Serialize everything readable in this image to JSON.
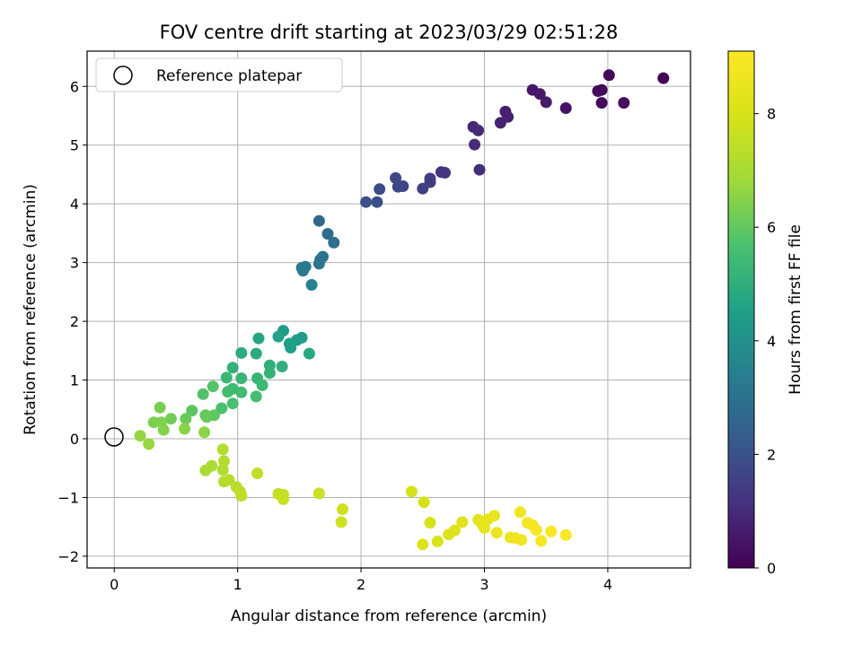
{
  "chart_data": {
    "type": "scatter",
    "title": "FOV centre drift starting at 2023/03/29 02:51:28",
    "xlabel": "Angular distance from reference (arcmin)",
    "ylabel": "Rotation from reference (arcmin)",
    "xlim": [
      -0.22,
      4.67
    ],
    "ylim": [
      -2.2,
      6.6
    ],
    "x_ticks": [
      0,
      1,
      2,
      3,
      4
    ],
    "y_ticks": [
      -2,
      -1,
      0,
      1,
      2,
      3,
      4,
      5,
      6
    ],
    "grid": true,
    "colormap": "viridis",
    "colorbar": {
      "label": "Hours from first FF file",
      "range": [
        0,
        9.1
      ],
      "ticks": [
        0,
        2,
        4,
        6,
        8
      ]
    },
    "reference": {
      "label": "Reference platepar",
      "x": 0,
      "y": 0
    },
    "legend": {
      "position": "top-left",
      "entries": [
        "Reference platepar"
      ]
    },
    "series": [
      {
        "points": [
          {
            "x": 4.45,
            "y": 6.14,
            "c": 0.05
          },
          {
            "x": 4.01,
            "y": 6.19,
            "c": 0.1
          },
          {
            "x": 3.95,
            "y": 5.94,
            "c": 0.15
          },
          {
            "x": 3.92,
            "y": 5.92,
            "c": 0.2
          },
          {
            "x": 3.95,
            "y": 5.72,
            "c": 0.25
          },
          {
            "x": 4.13,
            "y": 5.72,
            "c": 0.3
          },
          {
            "x": 3.66,
            "y": 5.63,
            "c": 0.4
          },
          {
            "x": 3.39,
            "y": 5.94,
            "c": 0.5
          },
          {
            "x": 3.45,
            "y": 5.87,
            "c": 0.55
          },
          {
            "x": 3.5,
            "y": 5.73,
            "c": 0.6
          },
          {
            "x": 3.17,
            "y": 5.57,
            "c": 0.7
          },
          {
            "x": 3.19,
            "y": 5.48,
            "c": 0.75
          },
          {
            "x": 3.13,
            "y": 5.38,
            "c": 0.8
          },
          {
            "x": 2.91,
            "y": 5.31,
            "c": 0.9
          },
          {
            "x": 2.95,
            "y": 5.25,
            "c": 0.95
          },
          {
            "x": 2.92,
            "y": 5.01,
            "c": 1.0
          },
          {
            "x": 2.96,
            "y": 4.58,
            "c": 1.05
          },
          {
            "x": 2.65,
            "y": 4.54,
            "c": 1.2
          },
          {
            "x": 2.68,
            "y": 4.53,
            "c": 1.25
          },
          {
            "x": 2.56,
            "y": 4.43,
            "c": 1.35
          },
          {
            "x": 2.56,
            "y": 4.37,
            "c": 1.4
          },
          {
            "x": 2.5,
            "y": 4.26,
            "c": 1.5
          },
          {
            "x": 2.34,
            "y": 4.3,
            "c": 1.6
          },
          {
            "x": 2.3,
            "y": 4.29,
            "c": 1.7
          },
          {
            "x": 2.28,
            "y": 4.44,
            "c": 1.75
          },
          {
            "x": 2.15,
            "y": 4.25,
            "c": 1.85
          },
          {
            "x": 2.13,
            "y": 4.03,
            "c": 1.9
          },
          {
            "x": 2.04,
            "y": 4.03,
            "c": 2.0
          },
          {
            "x": 1.66,
            "y": 3.71,
            "c": 2.6
          },
          {
            "x": 1.73,
            "y": 3.49,
            "c": 2.8
          },
          {
            "x": 1.78,
            "y": 3.34,
            "c": 2.9
          },
          {
            "x": 1.69,
            "y": 3.1,
            "c": 3.0
          },
          {
            "x": 1.67,
            "y": 3.05,
            "c": 3.05
          },
          {
            "x": 1.66,
            "y": 2.98,
            "c": 3.1
          },
          {
            "x": 1.52,
            "y": 2.91,
            "c": 3.2
          },
          {
            "x": 1.55,
            "y": 2.93,
            "c": 3.25
          },
          {
            "x": 1.53,
            "y": 2.86,
            "c": 3.3
          },
          {
            "x": 1.6,
            "y": 2.62,
            "c": 3.5
          },
          {
            "x": 1.37,
            "y": 1.84,
            "c": 4.3
          },
          {
            "x": 1.52,
            "y": 1.72,
            "c": 4.4
          },
          {
            "x": 1.48,
            "y": 1.68,
            "c": 4.45
          },
          {
            "x": 1.42,
            "y": 1.62,
            "c": 4.5
          },
          {
            "x": 1.43,
            "y": 1.55,
            "c": 4.55
          },
          {
            "x": 1.33,
            "y": 1.74,
            "c": 4.6
          },
          {
            "x": 1.17,
            "y": 1.71,
            "c": 4.7
          },
          {
            "x": 1.58,
            "y": 1.45,
            "c": 4.8
          },
          {
            "x": 1.15,
            "y": 1.45,
            "c": 4.85
          },
          {
            "x": 1.03,
            "y": 1.46,
            "c": 4.9
          },
          {
            "x": 1.26,
            "y": 1.25,
            "c": 5.0
          },
          {
            "x": 1.36,
            "y": 1.23,
            "c": 5.05
          },
          {
            "x": 0.96,
            "y": 1.21,
            "c": 5.1
          },
          {
            "x": 1.26,
            "y": 1.12,
            "c": 5.15
          },
          {
            "x": 1.16,
            "y": 1.03,
            "c": 5.2
          },
          {
            "x": 1.03,
            "y": 1.03,
            "c": 5.25
          },
          {
            "x": 0.91,
            "y": 1.04,
            "c": 5.3
          },
          {
            "x": 1.2,
            "y": 0.91,
            "c": 5.35
          },
          {
            "x": 0.96,
            "y": 0.85,
            "c": 5.4
          },
          {
            "x": 1.03,
            "y": 0.79,
            "c": 5.45
          },
          {
            "x": 0.92,
            "y": 0.8,
            "c": 5.5
          },
          {
            "x": 1.15,
            "y": 0.72,
            "c": 5.55
          },
          {
            "x": 0.96,
            "y": 0.6,
            "c": 5.6
          },
          {
            "x": 0.87,
            "y": 0.52,
            "c": 5.65
          },
          {
            "x": 0.72,
            "y": 0.76,
            "c": 5.75
          },
          {
            "x": 0.8,
            "y": 0.89,
            "c": 5.8
          },
          {
            "x": 0.63,
            "y": 0.48,
            "c": 5.9
          },
          {
            "x": 0.81,
            "y": 0.4,
            "c": 5.95
          },
          {
            "x": 0.74,
            "y": 0.4,
            "c": 6.0
          },
          {
            "x": 0.75,
            "y": 0.37,
            "c": 6.05
          },
          {
            "x": 0.58,
            "y": 0.34,
            "c": 6.1
          },
          {
            "x": 0.46,
            "y": 0.34,
            "c": 6.2
          },
          {
            "x": 0.37,
            "y": 0.53,
            "c": 6.3
          },
          {
            "x": 0.32,
            "y": 0.28,
            "c": 6.35
          },
          {
            "x": 0.38,
            "y": 0.28,
            "c": 6.4
          },
          {
            "x": 0.4,
            "y": 0.15,
            "c": 6.45
          },
          {
            "x": 0.57,
            "y": 0.17,
            "c": 6.5
          },
          {
            "x": 0.73,
            "y": 0.11,
            "c": 6.55
          },
          {
            "x": 0.21,
            "y": 0.05,
            "c": 6.65
          },
          {
            "x": 0.28,
            "y": -0.09,
            "c": 6.7
          },
          {
            "x": 0.74,
            "y": -0.54,
            "c": 7.0
          },
          {
            "x": 0.79,
            "y": -0.46,
            "c": 7.05
          },
          {
            "x": 0.88,
            "y": -0.53,
            "c": 7.1
          },
          {
            "x": 0.89,
            "y": -0.38,
            "c": 7.15
          },
          {
            "x": 0.88,
            "y": -0.18,
            "c": 7.2
          },
          {
            "x": 0.89,
            "y": -0.73,
            "c": 7.25
          },
          {
            "x": 0.93,
            "y": -0.7,
            "c": 7.3
          },
          {
            "x": 0.99,
            "y": -0.82,
            "c": 7.35
          },
          {
            "x": 1.02,
            "y": -0.9,
            "c": 7.4
          },
          {
            "x": 1.03,
            "y": -0.97,
            "c": 7.45
          },
          {
            "x": 1.16,
            "y": -0.59,
            "c": 7.5
          },
          {
            "x": 1.33,
            "y": -0.94,
            "c": 7.55
          },
          {
            "x": 1.37,
            "y": -0.95,
            "c": 7.6
          },
          {
            "x": 1.37,
            "y": -1.03,
            "c": 7.65
          },
          {
            "x": 1.66,
            "y": -0.93,
            "c": 7.7
          },
          {
            "x": 1.85,
            "y": -1.2,
            "c": 7.75
          },
          {
            "x": 1.84,
            "y": -1.42,
            "c": 7.8
          },
          {
            "x": 2.41,
            "y": -0.9,
            "c": 7.9
          },
          {
            "x": 2.51,
            "y": -1.08,
            "c": 7.95
          },
          {
            "x": 2.56,
            "y": -1.43,
            "c": 8.0
          },
          {
            "x": 2.62,
            "y": -1.75,
            "c": 8.05
          },
          {
            "x": 2.5,
            "y": -1.8,
            "c": 8.1
          },
          {
            "x": 2.71,
            "y": -1.63,
            "c": 8.15
          },
          {
            "x": 2.76,
            "y": -1.56,
            "c": 8.2
          },
          {
            "x": 2.82,
            "y": -1.42,
            "c": 8.25
          },
          {
            "x": 2.95,
            "y": -1.38,
            "c": 8.3
          },
          {
            "x": 2.98,
            "y": -1.45,
            "c": 8.35
          },
          {
            "x": 3.0,
            "y": -1.52,
            "c": 8.4
          },
          {
            "x": 3.03,
            "y": -1.37,
            "c": 8.45
          },
          {
            "x": 3.08,
            "y": -1.31,
            "c": 8.5
          },
          {
            "x": 3.1,
            "y": -1.6,
            "c": 8.55
          },
          {
            "x": 3.21,
            "y": -1.68,
            "c": 8.6
          },
          {
            "x": 3.25,
            "y": -1.69,
            "c": 8.65
          },
          {
            "x": 3.29,
            "y": -1.25,
            "c": 8.7
          },
          {
            "x": 3.3,
            "y": -1.72,
            "c": 8.75
          },
          {
            "x": 3.35,
            "y": -1.43,
            "c": 8.8
          },
          {
            "x": 3.39,
            "y": -1.47,
            "c": 8.85
          },
          {
            "x": 3.42,
            "y": -1.55,
            "c": 8.9
          },
          {
            "x": 3.46,
            "y": -1.74,
            "c": 8.95
          },
          {
            "x": 3.54,
            "y": -1.58,
            "c": 9.0
          },
          {
            "x": 3.66,
            "y": -1.64,
            "c": 9.05
          }
        ]
      }
    ]
  }
}
